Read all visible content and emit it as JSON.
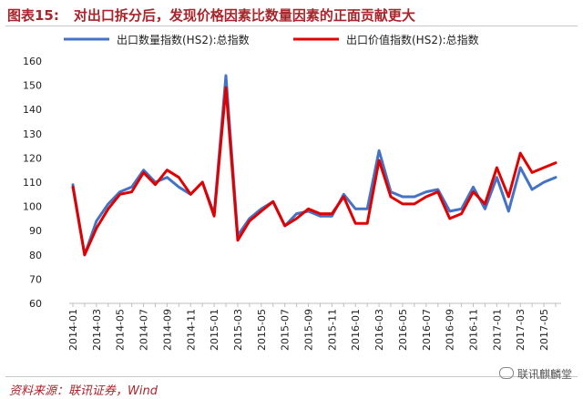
{
  "title": {
    "number": "图表15:",
    "text": "对出口拆分后，发现价格因素比数量因素的正面贡献更大"
  },
  "source": "资料来源：联讯证券，Wind",
  "watermark": "联讯麒麟堂",
  "colors": {
    "quantity": "#4472c4",
    "value": "#e00000",
    "title": "#a8252b"
  },
  "chart_data": {
    "type": "line",
    "title": "对出口拆分后，发现价格因素比数量因素的正面贡献更大",
    "ylim": [
      60,
      160
    ],
    "yticks": [
      60,
      70,
      80,
      90,
      100,
      110,
      120,
      130,
      140,
      150,
      160
    ],
    "grid": false,
    "legend": "top",
    "x": [
      "2014-01",
      "2014-02",
      "2014-03",
      "2014-04",
      "2014-05",
      "2014-06",
      "2014-07",
      "2014-08",
      "2014-09",
      "2014-10",
      "2014-11",
      "2014-12",
      "2015-01",
      "2015-02",
      "2015-03",
      "2015-04",
      "2015-05",
      "2015-06",
      "2015-07",
      "2015-08",
      "2015-09",
      "2015-10",
      "2015-11",
      "2015-12",
      "2016-01",
      "2016-02",
      "2016-03",
      "2016-04",
      "2016-05",
      "2016-06",
      "2016-07",
      "2016-08",
      "2016-09",
      "2016-10",
      "2016-11",
      "2016-12",
      "2017-01",
      "2017-02",
      "2017-03",
      "2017-04",
      "2017-05",
      "2017-06"
    ],
    "xtick_labels": [
      "2014-01",
      "2014-03",
      "2014-05",
      "2014-07",
      "2014-09",
      "2014-11",
      "2015-01",
      "2015-03",
      "2015-05",
      "2015-07",
      "2015-09",
      "2015-11",
      "2016-01",
      "2016-03",
      "2016-05",
      "2016-07",
      "2016-09",
      "2016-11",
      "2017-01",
      "2017-03",
      "2017-05"
    ],
    "series": [
      {
        "name": "出口数量指数(HS2):总指数",
        "color": "#4472c4",
        "values": [
          109,
          80,
          94,
          101,
          106,
          108,
          115,
          110,
          112,
          108,
          105,
          110,
          97,
          154,
          88,
          95,
          99,
          102,
          92,
          97,
          98,
          96,
          96,
          105,
          99,
          99,
          123,
          106,
          104,
          104,
          106,
          107,
          98,
          99,
          108,
          99,
          112,
          98,
          116,
          107,
          110,
          112
        ]
      },
      {
        "name": "出口价值指数(HS2):总指数",
        "color": "#e00000",
        "values": [
          108,
          80,
          91,
          99,
          105,
          106,
          114,
          109,
          115,
          112,
          105,
          110,
          96,
          149,
          86,
          94,
          98,
          102,
          92,
          95,
          99,
          97,
          97,
          104,
          93,
          93,
          119,
          104,
          101,
          101,
          104,
          106,
          95,
          97,
          106,
          101,
          116,
          104,
          122,
          114,
          116,
          118
        ]
      }
    ]
  }
}
